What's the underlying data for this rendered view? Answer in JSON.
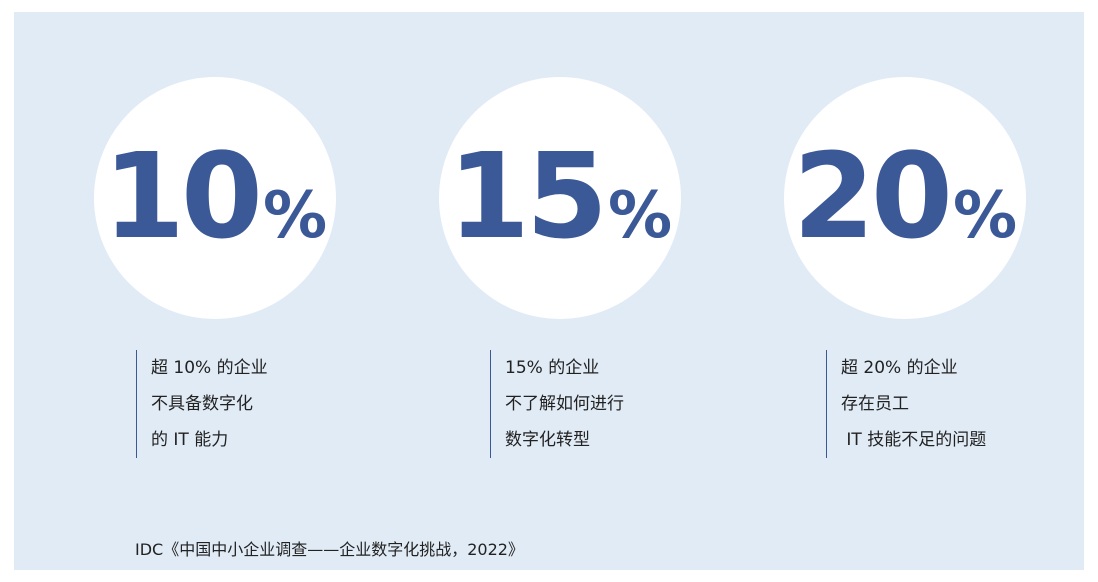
{
  "stats": [
    {
      "number": "10",
      "unit": "%",
      "lines": [
        "超 10% 的企业",
        "不具备数字化",
        "的 IT 能力"
      ]
    },
    {
      "number": "15",
      "unit": "%",
      "lines": [
        "15% 的企业",
        "不了解如何进行",
        "数字化转型"
      ]
    },
    {
      "number": "20",
      "unit": "%",
      "lines": [
        "超 20% 的企业",
        "存在员工",
        " IT 技能不足的问题"
      ]
    }
  ],
  "source": "IDC《中国中小企业调查——企业数字化挑战，2022》"
}
